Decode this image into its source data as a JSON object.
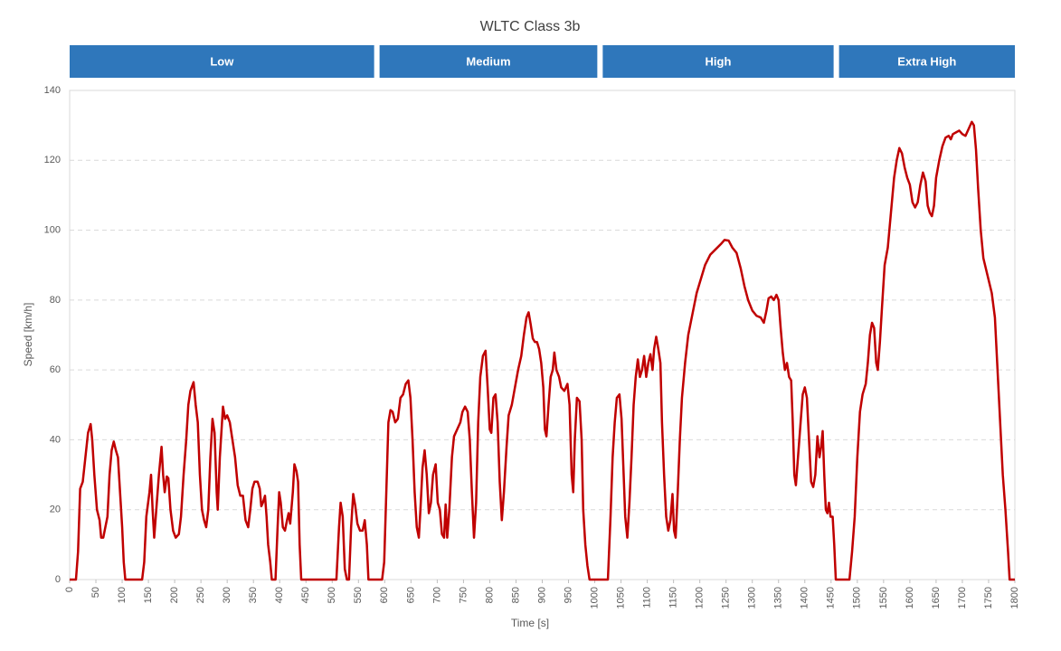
{
  "chart_data": {
    "type": "line",
    "title": "WLTC Class 3b",
    "x_label": "Time [s]",
    "y_label": "Speed [km/h]",
    "phases": [
      {
        "name": "Low",
        "start": 0,
        "end": 585
      },
      {
        "name": "Medium",
        "start": 585,
        "end": 1010
      },
      {
        "name": "High",
        "start": 1010,
        "end": 1460
      },
      {
        "name": "Extra High",
        "start": 1460,
        "end": 1800
      }
    ],
    "phase_color": "#2f77bb",
    "xlim": [
      0,
      1800
    ],
    "ylim": [
      0,
      140
    ],
    "xticks": [
      0,
      50,
      100,
      150,
      200,
      250,
      300,
      350,
      400,
      450,
      500,
      550,
      600,
      650,
      700,
      750,
      800,
      850,
      900,
      950,
      1000,
      1050,
      1100,
      1150,
      1200,
      1250,
      1300,
      1350,
      1400,
      1450,
      1500,
      1550,
      1600,
      1650,
      1700,
      1750,
      1800
    ],
    "yticks": [
      0,
      20,
      40,
      60,
      80,
      100,
      120,
      140
    ],
    "grid": true,
    "x": [
      0,
      12,
      16,
      20,
      25,
      30,
      35,
      40,
      43,
      47,
      52,
      57,
      60,
      64,
      68,
      72,
      76,
      80,
      84,
      88,
      92,
      96,
      100,
      103,
      106,
      120,
      138,
      142,
      146,
      152,
      155,
      158,
      161,
      165,
      170,
      175,
      178,
      181,
      185,
      188,
      192,
      197,
      202,
      208,
      212,
      217,
      222,
      226,
      230,
      236,
      240,
      244,
      248,
      252,
      256,
      260,
      264,
      268,
      272,
      276,
      280,
      282,
      286,
      292,
      296,
      300,
      305,
      310,
      315,
      320,
      325,
      330,
      335,
      340,
      344,
      348,
      352,
      358,
      362,
      365,
      368,
      372,
      375,
      378,
      382,
      385,
      392,
      396,
      399,
      402,
      406,
      410,
      414,
      417,
      420,
      425,
      428,
      432,
      435,
      438,
      441,
      500,
      508,
      513,
      516,
      520,
      524,
      528,
      532,
      536,
      540,
      544,
      548,
      553,
      558,
      562,
      566,
      569,
      589,
      595,
      599,
      603,
      607,
      611,
      615,
      620,
      625,
      630,
      635,
      640,
      645,
      649,
      653,
      657,
      661,
      665,
      668,
      672,
      676,
      680,
      684,
      688,
      692,
      697,
      701,
      705,
      709,
      713,
      716,
      719,
      723,
      728,
      732,
      738,
      744,
      748,
      753,
      758,
      762,
      766,
      770,
      774,
      778,
      782,
      787,
      792,
      796,
      800,
      803,
      807,
      811,
      815,
      819,
      823,
      827,
      832,
      836,
      842,
      848,
      854,
      860,
      865,
      870,
      874,
      878,
      882,
      886,
      890,
      894,
      898,
      902,
      905,
      908,
      912,
      916,
      920,
      923,
      927,
      932,
      936,
      942,
      948,
      952,
      956,
      959,
      962,
      966,
      971,
      975,
      978,
      982,
      986,
      990,
      1010,
      1025,
      1030,
      1034,
      1038,
      1042,
      1047,
      1051,
      1055,
      1058,
      1062,
      1066,
      1070,
      1074,
      1078,
      1082,
      1086,
      1090,
      1094,
      1098,
      1102,
      1106,
      1110,
      1113,
      1117,
      1121,
      1125,
      1128,
      1132,
      1136,
      1140,
      1144,
      1148,
      1151,
      1154,
      1158,
      1162,
      1166,
      1172,
      1178,
      1186,
      1194,
      1202,
      1210,
      1220,
      1230,
      1240,
      1247,
      1255,
      1262,
      1270,
      1278,
      1285,
      1292,
      1300,
      1308,
      1316,
      1322,
      1327,
      1331,
      1336,
      1341,
      1346,
      1350,
      1354,
      1358,
      1362,
      1366,
      1370,
      1374,
      1377,
      1380,
      1383,
      1387,
      1392,
      1396,
      1400,
      1404,
      1408,
      1412,
      1416,
      1420,
      1424,
      1428,
      1431,
      1434,
      1437,
      1440,
      1443,
      1446,
      1449,
      1453,
      1456,
      1459,
      1475,
      1485,
      1490,
      1495,
      1500,
      1505,
      1510,
      1516,
      1520,
      1524,
      1528,
      1532,
      1536,
      1539,
      1543,
      1547,
      1552,
      1558,
      1564,
      1570,
      1575,
      1580,
      1585,
      1590,
      1595,
      1600,
      1605,
      1610,
      1615,
      1620,
      1625,
      1630,
      1634,
      1638,
      1642,
      1646,
      1650,
      1656,
      1662,
      1668,
      1674,
      1678,
      1682,
      1688,
      1694,
      1700,
      1706,
      1712,
      1718,
      1722,
      1726,
      1730,
      1735,
      1740,
      1748,
      1756,
      1762,
      1767,
      1772,
      1777,
      1782,
      1787,
      1790,
      1800
    ],
    "series": [
      {
        "name": "Speed",
        "color": "#c00000",
        "values": [
          0,
          0,
          8,
          26,
          28,
          35,
          42,
          44.5,
          40,
          30,
          20,
          17,
          12,
          12,
          15,
          18,
          30,
          37,
          39.5,
          37,
          35,
          25,
          15,
          5,
          0,
          0,
          0,
          5,
          18,
          25,
          30,
          20,
          12,
          20,
          30,
          38,
          30,
          25,
          29.5,
          29,
          20,
          14,
          12,
          13,
          18,
          30,
          40,
          50,
          54,
          56.5,
          50,
          45,
          30,
          20,
          17,
          15,
          20,
          35,
          46,
          42,
          25,
          20,
          35,
          49.5,
          46,
          47,
          45,
          40,
          35,
          27,
          24,
          24,
          17,
          15,
          20,
          26,
          28,
          28,
          26,
          21,
          22,
          24,
          18,
          10,
          5,
          0,
          0,
          15,
          25,
          22,
          15,
          14,
          17,
          19,
          16,
          25,
          33,
          31,
          28,
          10,
          0,
          0,
          0,
          15,
          22,
          18,
          3,
          0,
          0,
          15,
          24.5,
          21,
          16,
          14,
          14,
          17,
          10,
          0,
          0,
          0,
          5,
          25,
          45,
          48.5,
          48,
          45,
          46,
          52,
          53,
          56,
          57,
          52,
          40,
          25,
          15,
          12,
          20,
          32,
          37,
          30,
          19,
          22,
          30,
          33,
          22,
          20,
          13,
          12,
          21.5,
          12,
          20,
          35,
          41,
          43,
          45,
          48,
          49.5,
          48,
          40,
          25,
          12,
          22,
          45,
          58,
          64,
          65.5,
          55,
          43,
          42,
          52,
          53,
          45,
          28,
          17,
          25,
          38,
          47,
          50,
          55,
          60,
          64,
          70,
          75,
          76.5,
          73,
          69,
          68,
          68,
          66,
          62,
          55,
          43,
          41,
          50,
          58,
          60,
          65,
          60,
          58,
          55,
          54,
          56,
          50,
          30,
          25,
          40,
          52,
          51,
          40,
          20,
          10,
          4,
          0,
          0,
          0,
          18,
          35,
          45,
          52,
          53,
          46,
          30,
          18,
          12,
          22,
          35,
          50,
          58,
          63,
          58,
          60,
          64,
          58,
          62,
          64.5,
          60,
          66,
          69.5,
          66,
          62,
          45,
          30,
          18,
          14,
          17,
          24.5,
          14,
          12,
          25,
          40,
          52,
          62,
          70,
          76,
          82,
          86,
          90,
          93,
          94.5,
          96,
          97.2,
          97,
          95,
          93.5,
          89,
          84,
          80,
          77,
          75.5,
          75,
          73.5,
          77,
          80.5,
          81,
          80,
          81.5,
          80,
          72,
          65,
          60,
          62,
          58,
          57,
          45,
          30,
          27,
          35,
          45,
          53,
          55,
          52,
          40,
          28,
          26.5,
          30,
          41,
          35,
          38,
          42.5,
          30,
          20,
          19,
          22,
          18,
          18,
          10,
          0,
          0,
          0,
          8,
          18,
          35,
          48,
          53,
          56,
          62,
          70,
          73.5,
          72,
          62,
          60,
          68,
          78,
          90,
          95,
          105,
          115,
          120,
          123.5,
          122,
          118,
          115,
          113,
          108,
          106.5,
          108,
          113,
          116.5,
          114,
          107,
          105,
          104,
          107,
          115,
          120,
          124,
          126.5,
          127,
          126,
          127.5,
          128,
          128.5,
          127.5,
          127,
          129,
          131,
          130,
          123,
          112,
          100,
          92,
          87,
          82,
          75,
          60,
          45,
          30,
          20,
          8,
          0,
          0
        ]
      }
    ]
  }
}
